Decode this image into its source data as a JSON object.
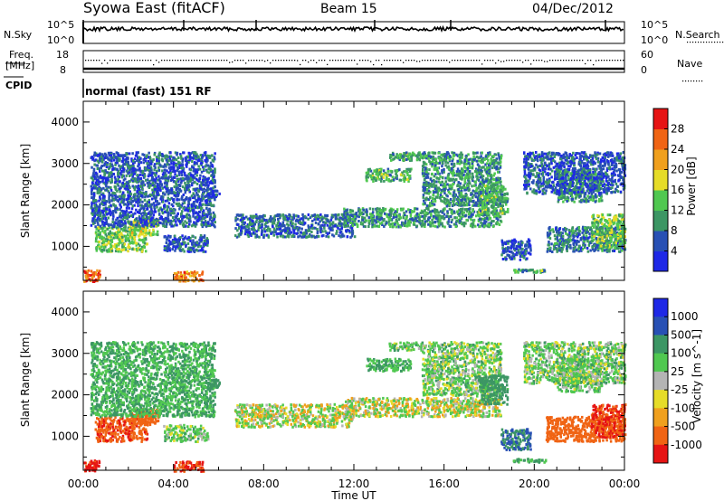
{
  "header": {
    "station": "Syowa East (fitACF)",
    "beam": "Beam 15",
    "date": "04/Dec/2012"
  },
  "top_panels": {
    "nsky_label": "N.Sky",
    "nsky_ticks": [
      "10^5",
      "10^0"
    ],
    "nsearch_label": "N.Search",
    "nsearch_ticks": [
      "10^5",
      "10^0"
    ],
    "freq_label_1": "Freq.",
    "freq_label_2": "[MHz]",
    "freq_ticks": [
      "18",
      "8"
    ],
    "nave_ticks": [
      "60",
      "0"
    ],
    "nave_label": "Nave",
    "cpid_label": "CPID",
    "cpid_text": "normal (fast) 151 RF"
  },
  "axes": {
    "x_tick_labels": [
      "00:00",
      "04:00",
      "08:00",
      "12:00",
      "16:00",
      "20:00",
      "00:00"
    ],
    "x_label": "Time UT",
    "y_tick_labels": [
      "1000",
      "2000",
      "3000",
      "4000"
    ],
    "y_label": "Slant Range [km]"
  },
  "colorbars": {
    "power": {
      "label": "Power [dB]",
      "tick_labels": [
        "4",
        "8",
        "12",
        "16",
        "20",
        "24",
        "28"
      ],
      "colors": [
        "#1e28e6",
        "#2850b4",
        "#3c9664",
        "#50c850",
        "#e6dc28",
        "#f0a01e",
        "#f06414",
        "#e61414"
      ]
    },
    "velocity": {
      "label": "Velocity [m s^-1]",
      "tick_labels": [
        "1000",
        "500",
        "100",
        "25",
        "-25",
        "-100",
        "-500",
        "-1000"
      ],
      "colors": [
        "#1e28e6",
        "#2850b4",
        "#3c9664",
        "#50c850",
        "#b4b4b4",
        "#e6dc28",
        "#f0a01e",
        "#f06414",
        "#e61414"
      ]
    }
  },
  "chart_data": {
    "type": "heatmap",
    "title": "Syowa East (fitACF)",
    "subtitle": "Beam 15 04/Dec/2012",
    "xlabel": "Time UT",
    "ylabel": "Slant Range [km]",
    "xlim_hours": [
      0,
      24
    ],
    "ylim_km": [
      180,
      4500
    ],
    "panels": [
      "Power [dB]",
      "Velocity [m s^-1]"
    ],
    "scatter_regions": [
      {
        "t": [
          0.0,
          0.7
        ],
        "r": [
          180,
          450
        ],
        "power_db": 26,
        "velocity": -700
      },
      {
        "t": [
          0.5,
          2.8
        ],
        "r": [
          900,
          1500
        ],
        "power_db": 14,
        "velocity": -400
      },
      {
        "t": [
          2.0,
          3.3
        ],
        "r": [
          1300,
          1700
        ],
        "power_db": 16,
        "velocity": -300
      },
      {
        "t": [
          0.3,
          5.8
        ],
        "r": [
          1500,
          3300
        ],
        "power_db": 6,
        "velocity": 100
      },
      {
        "t": [
          3.5,
          5.5
        ],
        "r": [
          900,
          1300
        ],
        "power_db": 6,
        "velocity": 50
      },
      {
        "t": [
          4.0,
          5.3
        ],
        "r": [
          180,
          420
        ],
        "power_db": 24,
        "velocity": -500
      },
      {
        "t": [
          5.5,
          6.0
        ],
        "r": [
          2200,
          2400
        ],
        "power_db": 6,
        "velocity": 200
      },
      {
        "t": [
          6.7,
          12.0
        ],
        "r": [
          1250,
          1800
        ],
        "power_db": 7,
        "velocity": 10
      },
      {
        "t": [
          11.5,
          18.5
        ],
        "r": [
          1500,
          1950
        ],
        "power_db": 10,
        "velocity": 10
      },
      {
        "t": [
          12.5,
          14.5
        ],
        "r": [
          2600,
          2900
        ],
        "power_db": 12,
        "velocity": 100
      },
      {
        "t": [
          13.5,
          15.0
        ],
        "r": [
          3100,
          3300
        ],
        "power_db": 12,
        "velocity": 50
      },
      {
        "t": [
          15.0,
          18.5
        ],
        "r": [
          2000,
          3300
        ],
        "power_db": 10,
        "velocity": 50
      },
      {
        "t": [
          17.5,
          18.8
        ],
        "r": [
          1800,
          2500
        ],
        "power_db": 12,
        "velocity": 150
      },
      {
        "t": [
          18.5,
          19.8
        ],
        "r": [
          700,
          1200
        ],
        "power_db": 5,
        "velocity": 500
      },
      {
        "t": [
          19.0,
          20.5
        ],
        "r": [
          400,
          480
        ],
        "power_db": 12,
        "velocity": 100
      },
      {
        "t": [
          20.5,
          24.0
        ],
        "r": [
          900,
          1500
        ],
        "power_db": 8,
        "velocity": -300
      },
      {
        "t": [
          21.0,
          23.0
        ],
        "r": [
          2100,
          2900
        ],
        "power_db": 10,
        "velocity": 50
      },
      {
        "t": [
          22.5,
          24.0
        ],
        "r": [
          1000,
          1800
        ],
        "power_db": 14,
        "velocity": -500
      },
      {
        "t": [
          19.5,
          24.0
        ],
        "r": [
          2300,
          3300
        ],
        "power_db": 6,
        "velocity": 50
      }
    ]
  }
}
